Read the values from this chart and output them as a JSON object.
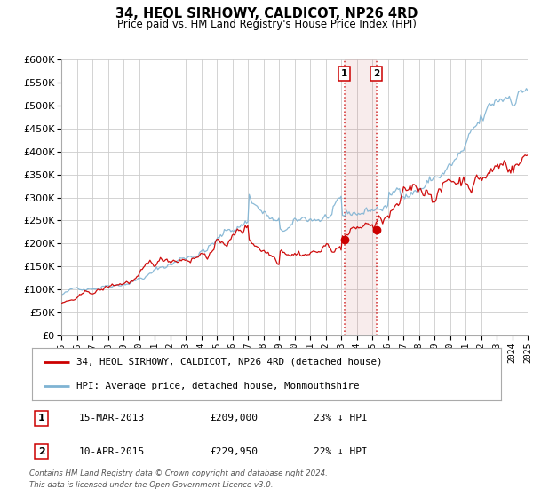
{
  "title": "34, HEOL SIRHOWY, CALDICOT, NP26 4RD",
  "subtitle": "Price paid vs. HM Land Registry's House Price Index (HPI)",
  "legend_label1": "34, HEOL SIRHOWY, CALDICOT, NP26 4RD (detached house)",
  "legend_label2": "HPI: Average price, detached house, Monmouthshire",
  "annotation1_label": "1",
  "annotation1_date": "15-MAR-2013",
  "annotation1_price": "£209,000",
  "annotation1_hpi": "23% ↓ HPI",
  "annotation2_label": "2",
  "annotation2_date": "10-APR-2015",
  "annotation2_price": "£229,950",
  "annotation2_hpi": "22% ↓ HPI",
  "footer1": "Contains HM Land Registry data © Crown copyright and database right 2024.",
  "footer2": "This data is licensed under the Open Government Licence v3.0.",
  "sale1_year": 2013.2,
  "sale1_value": 209000,
  "sale2_year": 2015.27,
  "sale2_value": 229950,
  "red_color": "#cc0000",
  "blue_color": "#7fb3d3",
  "shade_color": "#f5cccc",
  "grid_color": "#cccccc",
  "background_color": "#ffffff",
  "ylim_min": 0,
  "ylim_max": 600000,
  "xlim_min": 1995,
  "xlim_max": 2025
}
